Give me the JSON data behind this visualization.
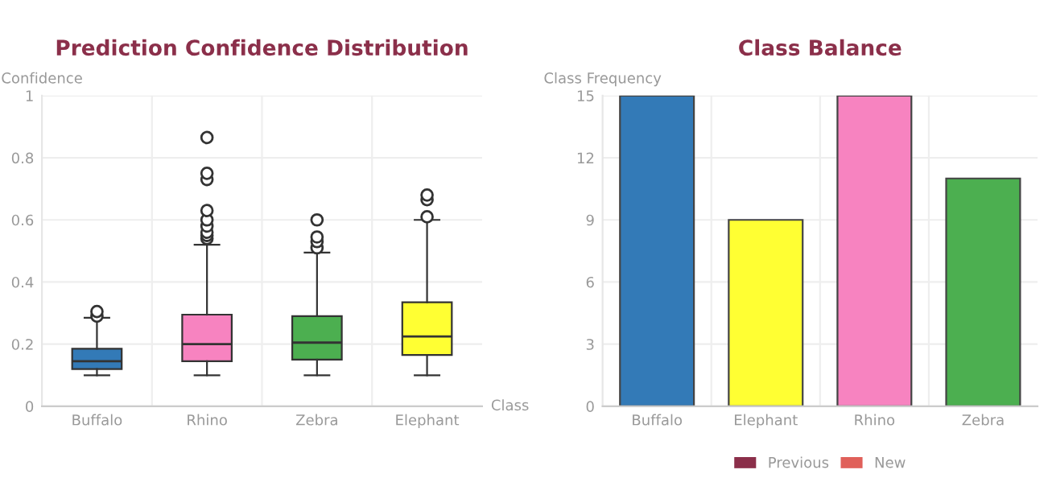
{
  "chart_data": [
    {
      "type": "box",
      "title": "Prediction Confidence Distribution",
      "ylabel": "Confidence",
      "xlabel": "Class",
      "categories": [
        "Buffalo",
        "Rhino",
        "Zebra",
        "Elephant"
      ],
      "colors": [
        "#337ab7",
        "#f783c0",
        "#4caf50",
        "#ffff33"
      ],
      "boxes": [
        {
          "low": 0.1,
          "q1": 0.12,
          "median": 0.145,
          "q3": 0.185,
          "high": 0.285,
          "outliers": [
            0.29,
            0.305
          ]
        },
        {
          "low": 0.1,
          "q1": 0.145,
          "median": 0.2,
          "q3": 0.295,
          "high": 0.52,
          "outliers": [
            0.54,
            0.55,
            0.56,
            0.58,
            0.6,
            0.63,
            0.73,
            0.75,
            0.865
          ]
        },
        {
          "low": 0.1,
          "q1": 0.15,
          "median": 0.205,
          "q3": 0.29,
          "high": 0.495,
          "outliers": [
            0.51,
            0.53,
            0.545,
            0.6
          ]
        },
        {
          "low": 0.1,
          "q1": 0.165,
          "median": 0.225,
          "q3": 0.335,
          "high": 0.6,
          "outliers": [
            0.61,
            0.665,
            0.68
          ]
        }
      ],
      "ylim": [
        0,
        1
      ],
      "yticks": [
        0,
        0.2,
        0.4,
        0.6,
        0.8,
        1
      ],
      "grid": true
    },
    {
      "type": "bar",
      "title": "Class Balance",
      "ylabel": "Class Frequency",
      "categories": [
        "Buffalo",
        "Elephant",
        "Rhino",
        "Zebra"
      ],
      "series": [
        {
          "colors": [
            "#337ab7",
            "#ffff33",
            "#f783c0",
            "#4caf50"
          ],
          "values": [
            15,
            9,
            15,
            11
          ]
        },
        {
          "name": "Previous",
          "color": "#8b2f4a",
          "values": [
            null,
            null,
            null,
            null
          ]
        },
        {
          "name": "New",
          "color": "#e0605a",
          "values": [
            null,
            null,
            null,
            null
          ]
        }
      ],
      "ylim": [
        0,
        15
      ],
      "yticks": [
        0,
        3,
        6,
        9,
        12,
        15
      ],
      "grid": true,
      "legend": "bottom"
    }
  ]
}
